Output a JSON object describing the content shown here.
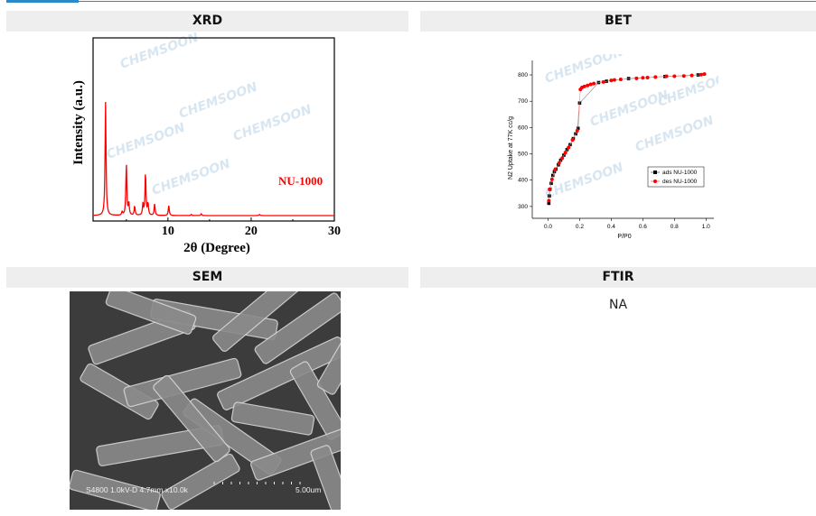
{
  "panels": [
    {
      "title": "XRD"
    },
    {
      "title": "BET"
    },
    {
      "title": "SEM"
    },
    {
      "title": "FTIR",
      "content": "NA"
    }
  ],
  "watermark": "CHEMSOON",
  "chart_data": [
    {
      "type": "line",
      "xlabel": "2θ (Degree)",
      "ylabel": "Intensity (a.u.)",
      "xlim": [
        1,
        30
      ],
      "xticks": [
        "10",
        "20",
        "30"
      ],
      "series": [
        {
          "name": "NU-1000",
          "color": "#ff0000",
          "peaks": [
            [
              2.5,
              1.0
            ],
            [
              4.5,
              0.03
            ],
            [
              5.0,
              0.45
            ],
            [
              5.3,
              0.1
            ],
            [
              6.0,
              0.08
            ],
            [
              7.0,
              0.1
            ],
            [
              7.3,
              0.37
            ],
            [
              7.6,
              0.1
            ],
            [
              8.4,
              0.1
            ],
            [
              10.1,
              0.09
            ],
            [
              12.8,
              0.01
            ],
            [
              14.0,
              0.015
            ],
            [
              21.0,
              0.01
            ]
          ]
        }
      ],
      "legend": "right"
    },
    {
      "type": "scatter",
      "xlabel": "P/P0",
      "ylabel": "N2 Uptake at 77K cc/g",
      "xlim": [
        -0.1,
        1.05
      ],
      "ylim": [
        255,
        855
      ],
      "xticks": [
        "0.0",
        "0.2",
        "0.4",
        "0.6",
        "0.8",
        "1.0"
      ],
      "yticks": [
        "300",
        "400",
        "500",
        "600",
        "700",
        "800"
      ],
      "legend_position": "right",
      "series": [
        {
          "name": "ads NU-1000",
          "color": "#000000",
          "points": [
            [
              0.005,
              312
            ],
            [
              0.008,
              340
            ],
            [
              0.012,
              365
            ],
            [
              0.02,
              388
            ],
            [
              0.03,
              418
            ],
            [
              0.04,
              432
            ],
            [
              0.05,
              442
            ],
            [
              0.065,
              458
            ],
            [
              0.08,
              476
            ],
            [
              0.1,
              495
            ],
            [
              0.12,
              516
            ],
            [
              0.14,
              535
            ],
            [
              0.16,
              558
            ],
            [
              0.175,
              576
            ],
            [
              0.19,
              597
            ],
            [
              0.2,
              693
            ],
            [
              0.32,
              771
            ],
            [
              0.37,
              776
            ],
            [
              0.51,
              786
            ],
            [
              0.74,
              794
            ],
            [
              0.95,
              800
            ]
          ]
        },
        {
          "name": "des NU-1000",
          "color": "#ff0000",
          "points": [
            [
              0.005,
              322
            ],
            [
              0.01,
              365
            ],
            [
              0.025,
              403
            ],
            [
              0.045,
              440
            ],
            [
              0.07,
              465
            ],
            [
              0.09,
              484
            ],
            [
              0.11,
              505
            ],
            [
              0.13,
              524
            ],
            [
              0.155,
              553
            ],
            [
              0.185,
              588
            ],
            [
              0.205,
              745
            ],
            [
              0.215,
              752
            ],
            [
              0.23,
              756
            ],
            [
              0.25,
              760
            ],
            [
              0.27,
              764
            ],
            [
              0.29,
              767
            ],
            [
              0.35,
              773
            ],
            [
              0.4,
              779
            ],
            [
              0.42,
              781
            ],
            [
              0.46,
              783
            ],
            [
              0.56,
              787
            ],
            [
              0.6,
              789
            ],
            [
              0.63,
              790
            ],
            [
              0.68,
              792
            ],
            [
              0.75,
              795
            ],
            [
              0.8,
              795
            ],
            [
              0.86,
              796
            ],
            [
              0.91,
              798
            ],
            [
              0.97,
              801
            ],
            [
              0.99,
              803
            ]
          ]
        }
      ]
    }
  ],
  "sem": {
    "caption": "S4800 1.0kV-D 4.7mm x10.0k",
    "scale": "5.00um"
  }
}
